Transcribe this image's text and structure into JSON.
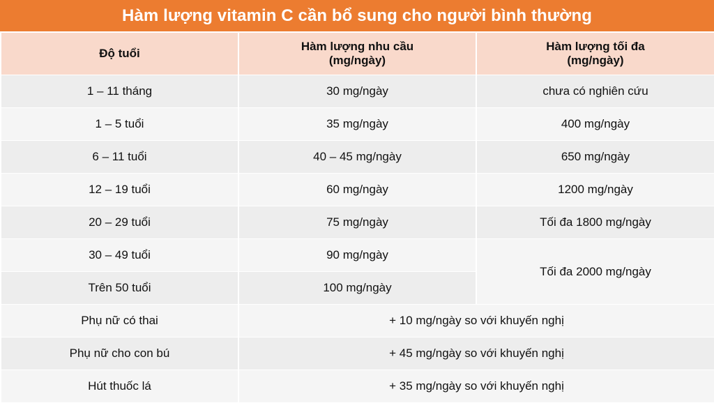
{
  "title": "Hàm lượng vitamin C cần bổ sung cho người bình thường",
  "colors": {
    "title_bg": "#ec7c30",
    "header_bg": "#f9d9cb",
    "row_dark": "#ededed",
    "row_light": "#f5f5f5"
  },
  "table": {
    "headers": {
      "age": "Độ tuổi",
      "need_line1": "Hàm lượng nhu cầu",
      "need_line2": "(mg/ngày)",
      "max_line1": "Hàm lượng tối đa",
      "max_line2": "(mg/ngày)"
    },
    "rows": [
      {
        "age": "1 – 11 tháng",
        "need": "30 mg/ngày",
        "max": "chưa có nghiên cứu"
      },
      {
        "age": "1 – 5 tuổi",
        "need": "35 mg/ngày",
        "max": "400 mg/ngày"
      },
      {
        "age": "6 – 11 tuổi",
        "need": "40 – 45 mg/ngày",
        "max": "650 mg/ngày"
      },
      {
        "age": "12 – 19 tuổi",
        "need": "60 mg/ngày",
        "max": "1200 mg/ngày"
      },
      {
        "age": "20 – 29 tuổi",
        "need": "75 mg/ngày",
        "max": "Tối đa 1800 mg/ngày"
      },
      {
        "age": "30 – 49 tuổi",
        "need": "90 mg/ngày",
        "max": "Tối đa 2000 mg/ngày"
      },
      {
        "age": "Trên 50 tuổi",
        "need": "100 mg/ngày"
      }
    ],
    "special_rows": [
      {
        "group": "Phụ nữ có thai",
        "note": "+ 10 mg/ngày so với khuyến nghị"
      },
      {
        "group": "Phụ nữ cho con bú",
        "note": "+ 45 mg/ngày so với khuyến nghị"
      },
      {
        "group": "Hút thuốc lá",
        "note": "+ 35 mg/ngày so với khuyến nghị"
      }
    ]
  }
}
